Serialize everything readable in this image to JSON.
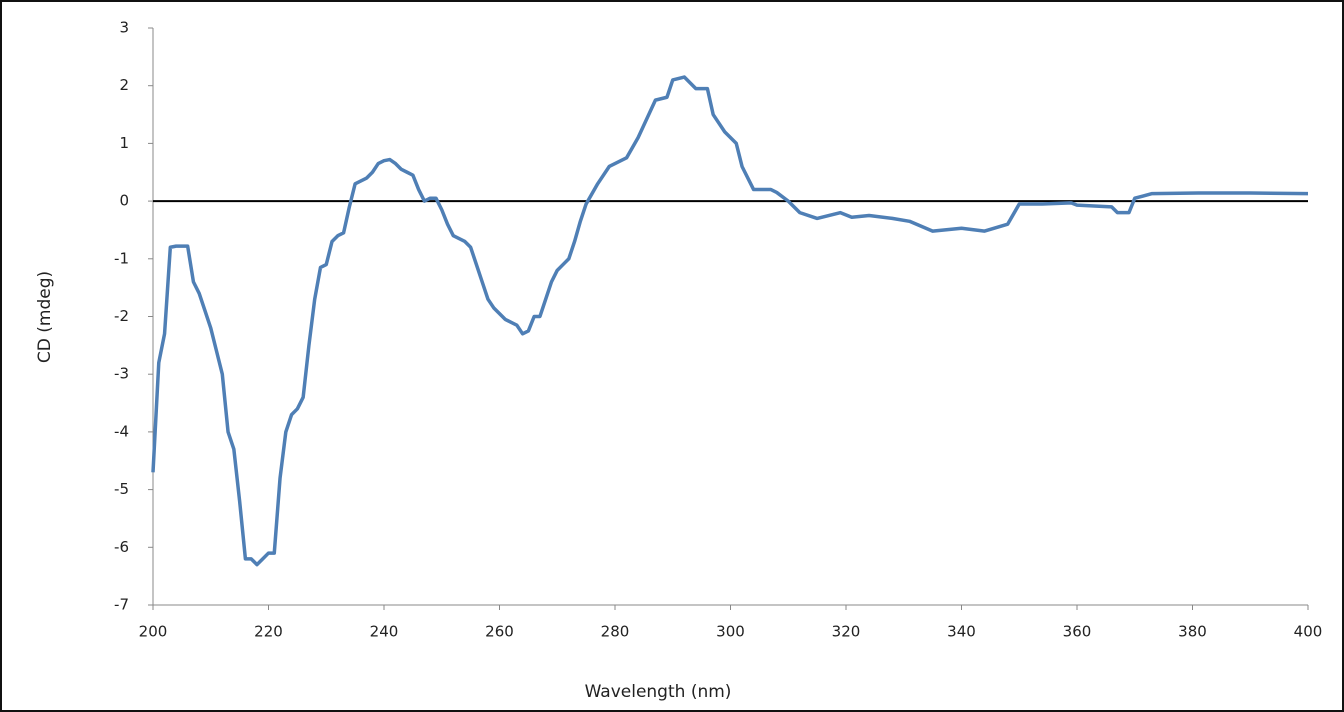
{
  "chart_data": {
    "type": "line",
    "x_label": "Wavelength (nm)",
    "y_label": "CD (mdeg)",
    "xlim": [
      200,
      400
    ],
    "xticks": [
      200,
      220,
      240,
      260,
      280,
      300,
      320,
      340,
      360,
      380,
      400
    ],
    "ylim": [
      -7,
      3
    ],
    "yticks": [
      -7,
      -6,
      -5,
      -4,
      -3,
      -2,
      -1,
      0,
      1,
      2,
      3
    ],
    "zero_line": true,
    "series": [
      {
        "color": "#4f7fb5",
        "x": [
          200,
          201,
          202,
          203,
          204,
          205,
          206,
          207,
          208,
          209,
          210,
          211,
          212,
          213,
          214,
          215,
          216,
          217,
          218,
          219,
          220,
          221,
          222,
          223,
          224,
          225,
          226,
          227,
          228,
          229,
          230,
          231,
          232,
          233,
          234,
          235,
          236,
          237,
          238,
          239,
          240,
          241,
          242,
          243,
          244,
          245,
          246,
          247,
          248,
          249,
          250,
          251,
          252,
          253,
          254,
          255,
          256,
          257,
          258,
          259,
          260,
          261,
          262,
          263,
          264,
          265,
          266,
          267,
          268,
          269,
          270,
          271,
          272,
          273,
          274,
          275,
          277,
          279,
          282,
          284,
          287,
          289,
          290,
          292,
          294,
          296,
          297,
          299,
          301,
          302,
          304,
          307,
          308,
          310,
          312,
          315,
          317,
          319,
          321,
          324,
          328,
          331,
          335,
          340,
          344,
          348,
          350,
          354,
          359,
          360,
          366,
          367,
          369,
          370,
          373,
          381,
          390,
          400
        ],
        "values": [
          -4.7,
          -2.8,
          -2.3,
          -0.8,
          -0.78,
          -0.78,
          -0.78,
          -1.4,
          -1.6,
          -1.9,
          -2.2,
          -2.6,
          -3.0,
          -4.0,
          -4.3,
          -5.2,
          -6.2,
          -6.2,
          -6.3,
          -6.2,
          -6.1,
          -6.1,
          -4.8,
          -4.0,
          -3.7,
          -3.6,
          -3.4,
          -2.5,
          -1.7,
          -1.15,
          -1.1,
          -0.7,
          -0.6,
          -0.55,
          -0.1,
          0.3,
          0.35,
          0.4,
          0.5,
          0.65,
          0.7,
          0.72,
          0.65,
          0.55,
          0.5,
          0.45,
          0.2,
          0.0,
          0.05,
          0.05,
          -0.15,
          -0.4,
          -0.6,
          -0.65,
          -0.7,
          -0.8,
          -1.1,
          -1.4,
          -1.7,
          -1.85,
          -1.95,
          -2.05,
          -2.1,
          -2.15,
          -2.3,
          -2.25,
          -2.0,
          -2.0,
          -1.7,
          -1.4,
          -1.2,
          -1.1,
          -1.0,
          -0.7,
          -0.35,
          -0.05,
          0.3,
          0.6,
          0.75,
          1.1,
          1.75,
          1.8,
          2.1,
          2.15,
          1.95,
          1.95,
          1.5,
          1.2,
          1.0,
          0.6,
          0.2,
          0.2,
          0.15,
          0.0,
          -0.2,
          -0.3,
          -0.25,
          -0.2,
          -0.28,
          -0.25,
          -0.3,
          -0.35,
          -0.52,
          -0.47,
          -0.52,
          -0.4,
          -0.05,
          -0.05,
          -0.03,
          -0.07,
          -0.1,
          -0.2,
          -0.2,
          0.05,
          0.13,
          0.14,
          0.14,
          0.13
        ]
      }
    ]
  }
}
